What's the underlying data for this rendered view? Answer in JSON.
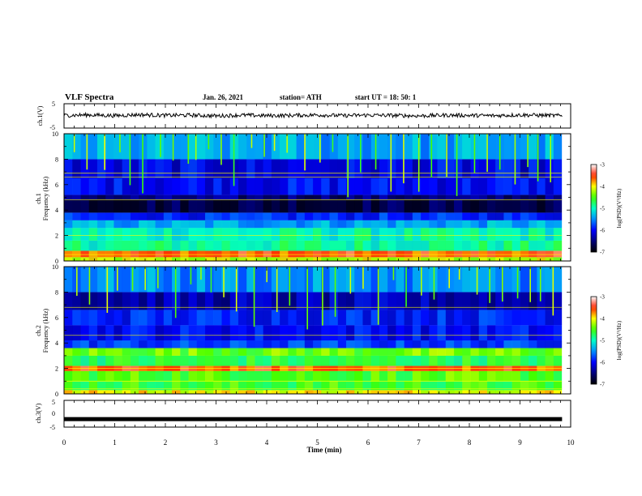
{
  "header": {
    "title": "VLF Spectra",
    "date": "Jan. 26, 2021",
    "station": "station= ATH",
    "start": "start  UT =   18: 50: 1"
  },
  "colors": {
    "background": "#ffffff",
    "axis": "#000000",
    "colormap": [
      "#000000",
      "#00007a",
      "#0000ff",
      "#0090ff",
      "#00ffc8",
      "#40ff00",
      "#ffff00",
      "#ff2000",
      "#ffffff"
    ]
  },
  "chart_data": [
    {
      "id": "ch1-waveform",
      "type": "line",
      "ylabel": "ch.1(V)",
      "ylim": [
        -5,
        5
      ],
      "yticks": [
        "5",
        "-5"
      ],
      "xlim": [
        0,
        10
      ],
      "series": [
        {
          "x": [
            0,
            0.5,
            1,
            1.5,
            2,
            2.5,
            3,
            3.5,
            4,
            4.5,
            5,
            5.5,
            6,
            6.5,
            7,
            7.5,
            8,
            8.5,
            9,
            9.5,
            9.83
          ],
          "values": [
            0.2,
            0.4,
            0.1,
            0.5,
            0.2,
            0.3,
            0.0,
            0.3,
            0.1,
            0.2,
            0.4,
            0.1,
            0.3,
            0.2,
            0.0,
            0.3,
            0.2,
            0.1,
            0.4,
            0.2,
            0.1
          ]
        }
      ]
    },
    {
      "id": "ch1-spectrogram",
      "type": "heatmap",
      "ylabel": "ch.1\nFrequency (kHz)",
      "ylabel_lines": [
        "ch.1",
        "Frequency (kHz)"
      ],
      "yticks": [
        "0",
        "2",
        "4",
        "6",
        "8",
        "10"
      ],
      "ylim": [
        0,
        10
      ],
      "xlim": [
        0,
        10
      ],
      "colorbar": {
        "label": "log(PSD)(V²/Hz)",
        "ticks": [
          "-3",
          "-4",
          "-5",
          "-6",
          "-7"
        ],
        "range": [
          -7,
          -3
        ]
      },
      "bands": [
        {
          "from": 0.0,
          "to": 0.3,
          "level": -4.2
        },
        {
          "from": 0.3,
          "to": 0.8,
          "level": -3.6
        },
        {
          "from": 0.8,
          "to": 1.6,
          "level": -4.9
        },
        {
          "from": 1.6,
          "to": 2.6,
          "level": -5.0
        },
        {
          "from": 2.6,
          "to": 3.2,
          "level": -5.4
        },
        {
          "from": 3.2,
          "to": 3.8,
          "level": -5.9
        },
        {
          "from": 3.8,
          "to": 4.8,
          "level": -6.7
        },
        {
          "from": 4.8,
          "to": 5.2,
          "level": -6.5
        },
        {
          "from": 5.2,
          "to": 6.5,
          "level": -6.0
        },
        {
          "from": 6.5,
          "to": 8.0,
          "level": -6.1
        },
        {
          "from": 8.0,
          "to": 10.0,
          "level": -5.4
        }
      ],
      "lines_khz": [
        0.5,
        2.0,
        4.8,
        6.6,
        6.9
      ],
      "sferic_times": [
        0.2,
        0.45,
        0.8,
        1.1,
        1.3,
        1.55,
        1.9,
        2.15,
        2.45,
        2.6,
        2.85,
        3.1,
        3.35,
        3.7,
        3.95,
        4.15,
        4.4,
        4.75,
        5.05,
        5.3,
        5.6,
        5.85,
        6.15,
        6.45,
        6.7,
        7.0,
        7.25,
        7.55,
        7.75,
        8.1,
        8.35,
        8.6,
        8.9,
        9.15,
        9.35,
        9.6
      ]
    },
    {
      "id": "ch2-spectrogram",
      "type": "heatmap",
      "ylabel": "ch.2\nFrequency (kHz)",
      "ylabel_lines": [
        "ch.2",
        "Frequency (kHz)"
      ],
      "yticks": [
        "0",
        "2",
        "4",
        "6",
        "8",
        "10"
      ],
      "ylim": [
        0,
        10
      ],
      "xlim": [
        0,
        10
      ],
      "colorbar": {
        "label": "log(PSD)(V²/Hz)",
        "ticks": [
          "-3",
          "-4",
          "-5",
          "-6",
          "-7"
        ],
        "range": [
          -7,
          -3
        ]
      },
      "bands": [
        {
          "from": 0.0,
          "to": 0.3,
          "level": -4.0
        },
        {
          "from": 0.3,
          "to": 1.0,
          "level": -4.6
        },
        {
          "from": 1.0,
          "to": 1.8,
          "level": -4.5
        },
        {
          "from": 1.8,
          "to": 2.2,
          "level": -3.6
        },
        {
          "from": 2.2,
          "to": 3.0,
          "level": -4.7
        },
        {
          "from": 3.0,
          "to": 3.6,
          "level": -4.4
        },
        {
          "from": 3.6,
          "to": 4.2,
          "level": -5.8
        },
        {
          "from": 4.2,
          "to": 5.4,
          "level": -6.0
        },
        {
          "from": 5.4,
          "to": 6.6,
          "level": -5.9
        },
        {
          "from": 6.6,
          "to": 8.0,
          "level": -6.3
        },
        {
          "from": 8.0,
          "to": 10.0,
          "level": -5.5
        }
      ],
      "lines_khz": [
        0.4,
        1.0,
        2.0,
        4.6,
        6.8
      ],
      "sferic_times": [
        0.25,
        0.5,
        0.85,
        1.05,
        1.35,
        1.6,
        1.85,
        2.2,
        2.5,
        2.7,
        2.9,
        3.15,
        3.4,
        3.75,
        4.0,
        4.2,
        4.45,
        4.8,
        5.1,
        5.35,
        5.65,
        5.9,
        6.2,
        6.5,
        6.75,
        7.05,
        7.3,
        7.6,
        7.8,
        8.15,
        8.4,
        8.65,
        8.95,
        9.2,
        9.4,
        9.65
      ]
    },
    {
      "id": "ch3-waveform",
      "type": "line",
      "ylabel": "ch.3(V)",
      "ylim": [
        -5,
        5
      ],
      "yticks": [
        "5",
        "0",
        "-5"
      ],
      "xlim": [
        0,
        10
      ],
      "xlabel": "Time (min)",
      "xticks": [
        "0",
        "1",
        "2",
        "3",
        "4",
        "5",
        "6",
        "7",
        "8",
        "9",
        "10"
      ],
      "series": [
        {
          "x": [
            0,
            9.83
          ],
          "values": [
            -2,
            -2
          ]
        }
      ]
    }
  ]
}
